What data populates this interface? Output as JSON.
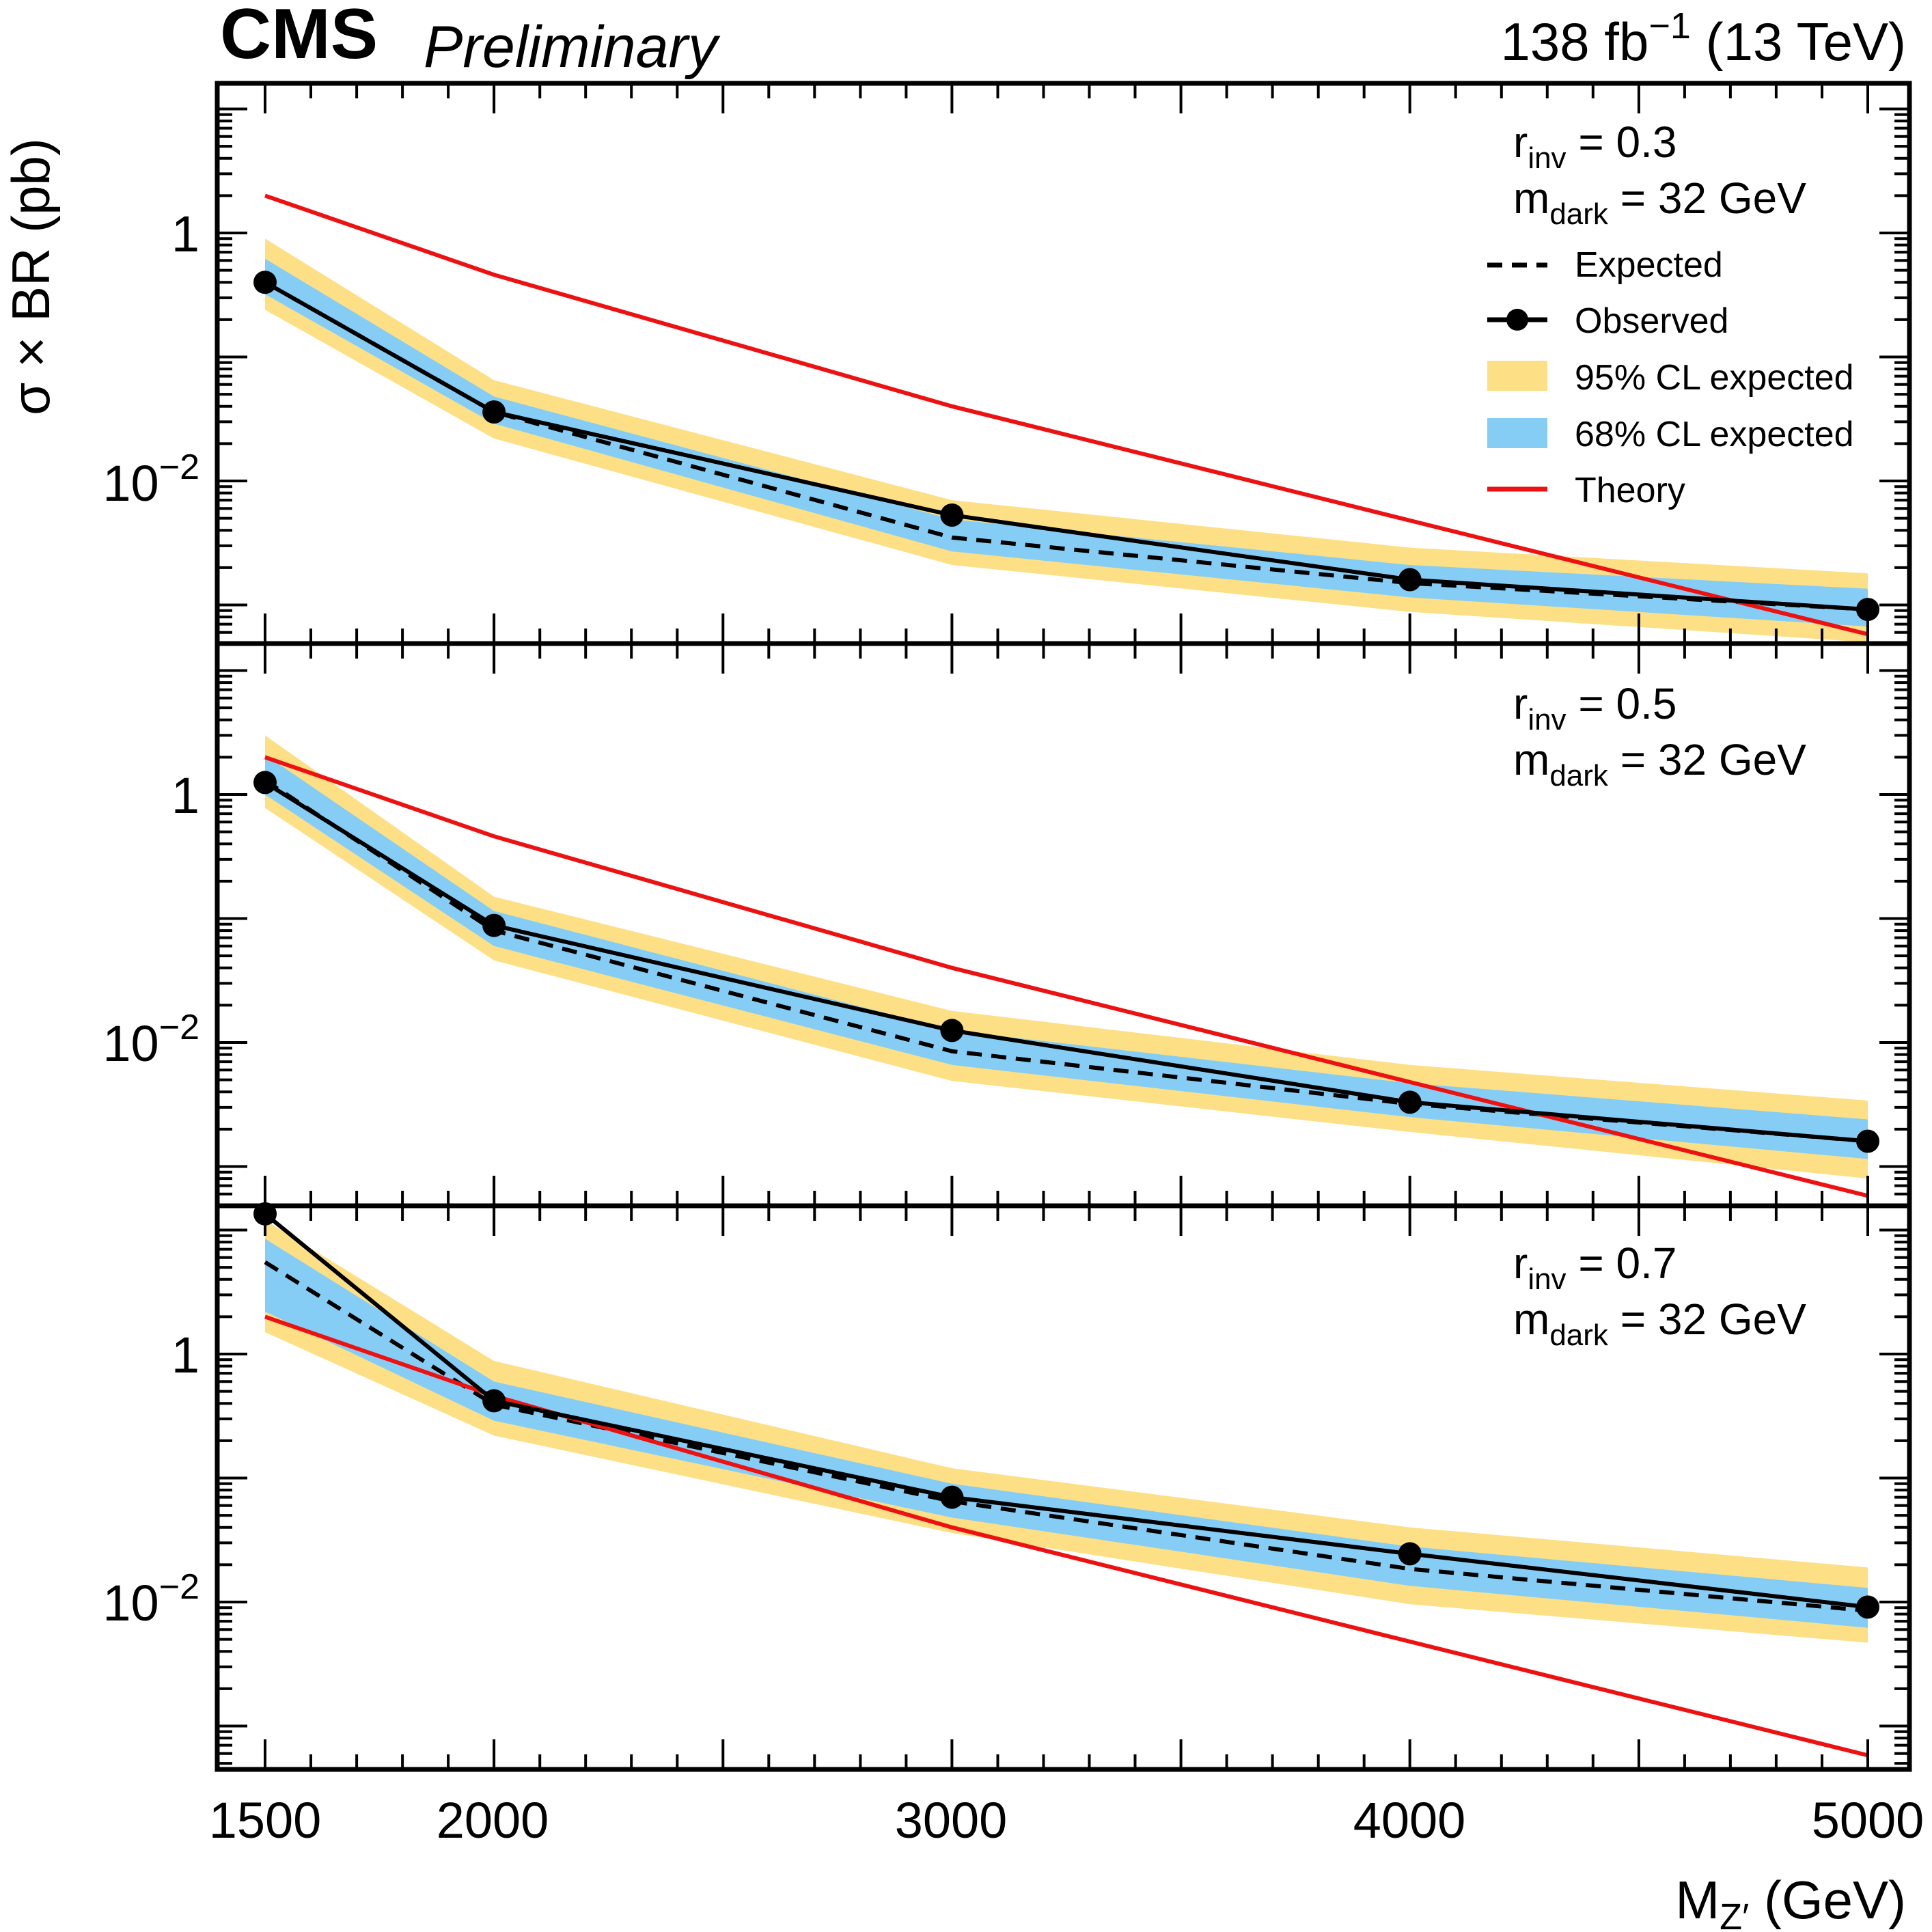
{
  "header": {
    "cms": "CMS",
    "preliminary": "Preliminary",
    "lumi_value": "138 fb",
    "lumi_exponent": "−1",
    "energy": " (13 TeV)"
  },
  "axes": {
    "ylabel": "σ × BR (pb)",
    "xlabel_main": "M",
    "xlabel_sub": "Z′",
    "xlabel_unit": " (GeV)",
    "xtick_labels": [
      "1500",
      "2000",
      "3000",
      "4000",
      "5000"
    ],
    "ytick_one": "1",
    "ytick_exp_base": "10",
    "ytick_exp_power": "−2"
  },
  "legend": {
    "expected": "Expected",
    "observed": "Observed",
    "band95": "95% CL expected",
    "band68": "68% CL expected",
    "theory": "Theory"
  },
  "colors": {
    "band95": "#fde085",
    "band68": "#86cdf5",
    "theory": "#ee1111",
    "observed": "#000000",
    "expected": "#000000"
  },
  "chart_data": {
    "type": "line",
    "xlabel": "M_Z′ (GeV)",
    "ylabel": "σ × BR (pb)",
    "yscale": "log",
    "xlim": [
      1480,
      5100
    ],
    "x": [
      1500,
      2000,
      3000,
      4000,
      5000
    ],
    "panels": [
      {
        "r_sym": "r",
        "r_sub": "inv",
        "r_value": " = 0.3",
        "m_sym": "m",
        "m_sub": "dark",
        "m_value": " = 32 GeV",
        "ylim": [
          0.00055,
          20
        ],
        "observed": [
          0.4,
          0.036,
          0.0053,
          0.0016,
          0.00092
        ],
        "expected": [
          0.4,
          0.036,
          0.0035,
          0.0015,
          0.00092
        ],
        "band68": {
          "low": [
            0.32,
            0.029,
            0.0027,
            0.00115,
            0.00067
          ],
          "high": [
            0.62,
            0.048,
            0.0049,
            0.0021,
            0.00135
          ]
        },
        "band95": {
          "low": [
            0.24,
            0.022,
            0.0021,
            0.00088,
            0.0005
          ],
          "high": [
            0.9,
            0.065,
            0.007,
            0.0029,
            0.0018
          ]
        },
        "theory": [
          2.0,
          0.46,
          0.04,
          0.0048,
          0.00058
        ]
      },
      {
        "r_sym": "r",
        "r_sub": "inv",
        "r_value": " = 0.5",
        "m_sym": "m",
        "m_sub": "dark",
        "m_value": " = 32 GeV",
        "ylim": [
          0.00055,
          20
        ],
        "observed": [
          1.25,
          0.088,
          0.0125,
          0.0033,
          0.0016
        ],
        "expected": [
          1.3,
          0.08,
          0.0085,
          0.0032,
          0.0016
        ],
        "band68": {
          "low": [
            1.0,
            0.06,
            0.0066,
            0.0025,
            0.00115
          ],
          "high": [
            2.1,
            0.115,
            0.0125,
            0.0047,
            0.0024
          ]
        },
        "band95": {
          "low": [
            0.78,
            0.046,
            0.0049,
            0.0019,
            0.0008
          ],
          "high": [
            3.0,
            0.15,
            0.018,
            0.0066,
            0.0034
          ]
        },
        "theory": [
          2.0,
          0.46,
          0.04,
          0.0048,
          0.00058
        ]
      },
      {
        "r_sym": "r",
        "r_sub": "inv",
        "r_value": " = 0.7",
        "m_sym": "m",
        "m_sub": "dark",
        "m_value": " = 32 GeV",
        "ylim": [
          0.00055,
          20
        ],
        "observed": [
          13.5,
          0.42,
          0.07,
          0.0245,
          0.0091
        ],
        "expected": [
          5.5,
          0.39,
          0.065,
          0.0185,
          0.0085
        ],
        "band68": {
          "low": [
            2.2,
            0.29,
            0.048,
            0.0135,
            0.0062
          ],
          "high": [
            8.5,
            0.6,
            0.09,
            0.028,
            0.013
          ]
        },
        "band95": {
          "low": [
            1.5,
            0.22,
            0.036,
            0.0096,
            0.0047
          ],
          "high": [
            12.0,
            0.88,
            0.12,
            0.04,
            0.019
          ]
        },
        "theory": [
          2.0,
          0.46,
          0.04,
          0.0048,
          0.00058
        ]
      }
    ]
  }
}
